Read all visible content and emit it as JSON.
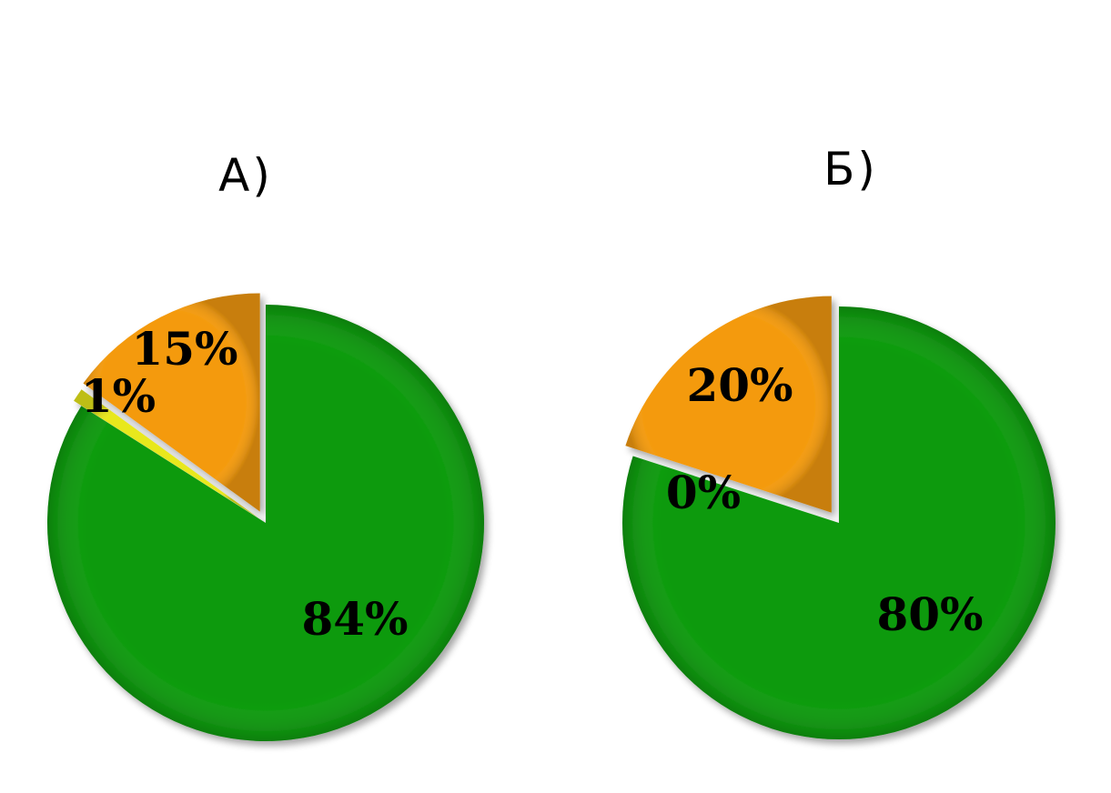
{
  "chart_data": [
    {
      "type": "pie",
      "title": "А)",
      "slices": [
        {
          "value": 84,
          "label": "84%",
          "color": "#0a9a0a"
        },
        {
          "value": 1,
          "label": "1%",
          "color": "#e8e81a"
        },
        {
          "value": 15,
          "label": "15%",
          "color": "#f49a0c"
        }
      ]
    },
    {
      "type": "pie",
      "title": "Б)",
      "slices": [
        {
          "value": 80,
          "label": "80%",
          "color": "#0a9a0a"
        },
        {
          "value": 0,
          "label": "0%",
          "color": "#e8e81a"
        },
        {
          "value": 20,
          "label": "20%",
          "color": "#f49a0c"
        }
      ]
    }
  ]
}
